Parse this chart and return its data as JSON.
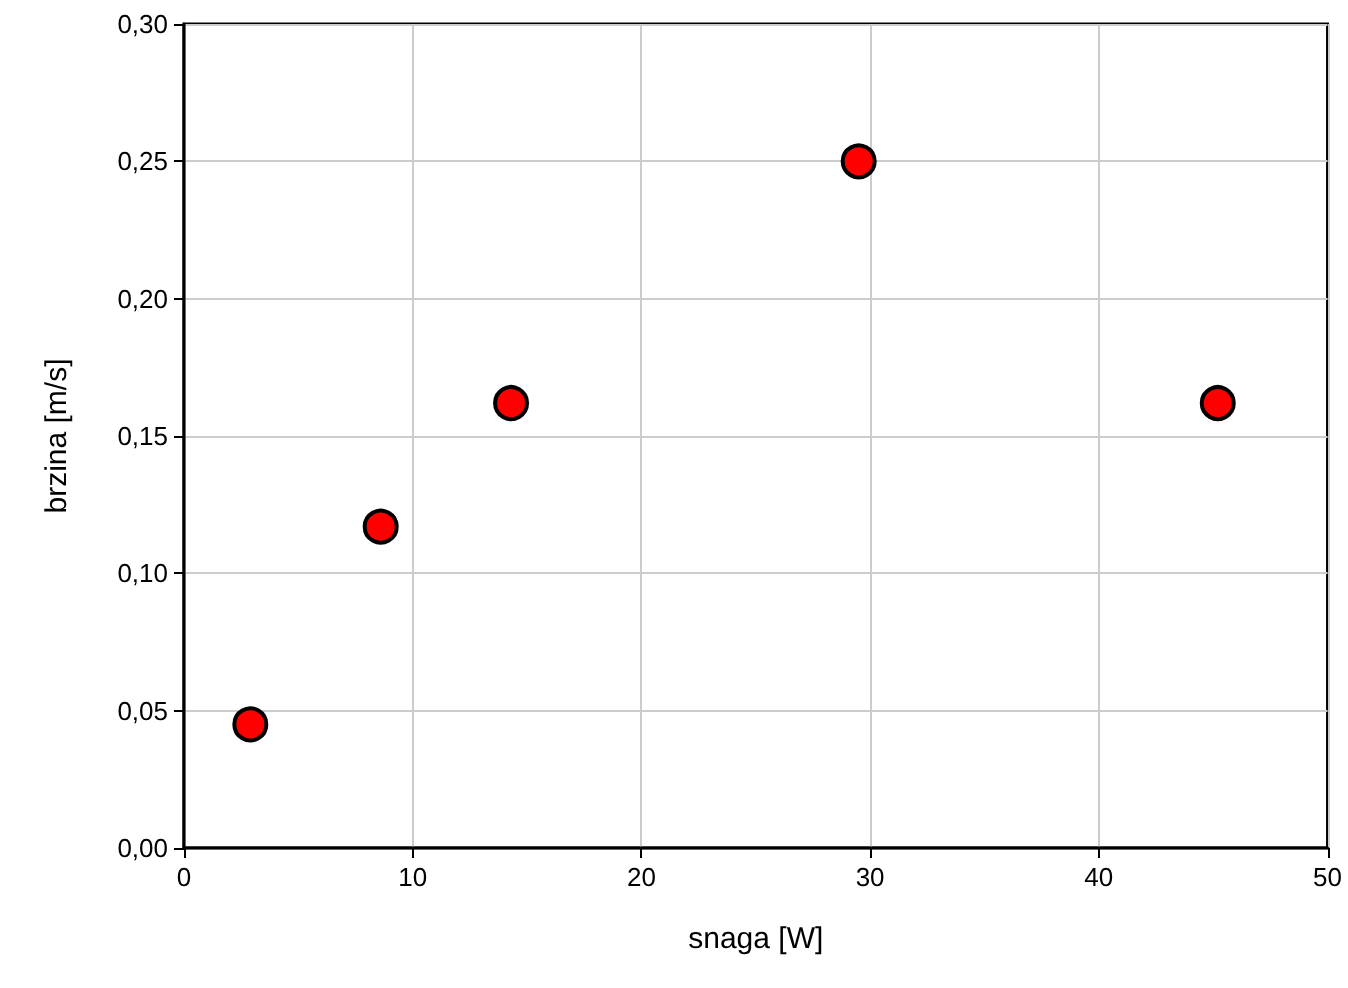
{
  "chart_data": {
    "type": "scatter",
    "xlabel": "snaga [W]",
    "ylabel": "brzina [m/s]",
    "x": [
      2.9,
      8.6,
      14.3,
      29.5,
      45.2
    ],
    "values": [
      0.045,
      0.117,
      0.162,
      0.25,
      0.162
    ],
    "color": "#ff0000",
    "marker": "circle",
    "grid": true,
    "xlim": [
      0,
      50
    ],
    "xticks": [
      0,
      10,
      20,
      30,
      40,
      50
    ],
    "ylim": [
      0,
      0.3
    ],
    "yticks": [
      {
        "value": 0,
        "label": "0,00"
      },
      {
        "value": 0.05,
        "label": "0,05"
      },
      {
        "value": 0.1,
        "label": "0,10"
      },
      {
        "value": 0.15,
        "label": "0,15"
      },
      {
        "value": 0.2,
        "label": "0,20"
      },
      {
        "value": 0.25,
        "label": "0,25"
      },
      {
        "value": 0.3,
        "label": "0,30"
      }
    ]
  }
}
